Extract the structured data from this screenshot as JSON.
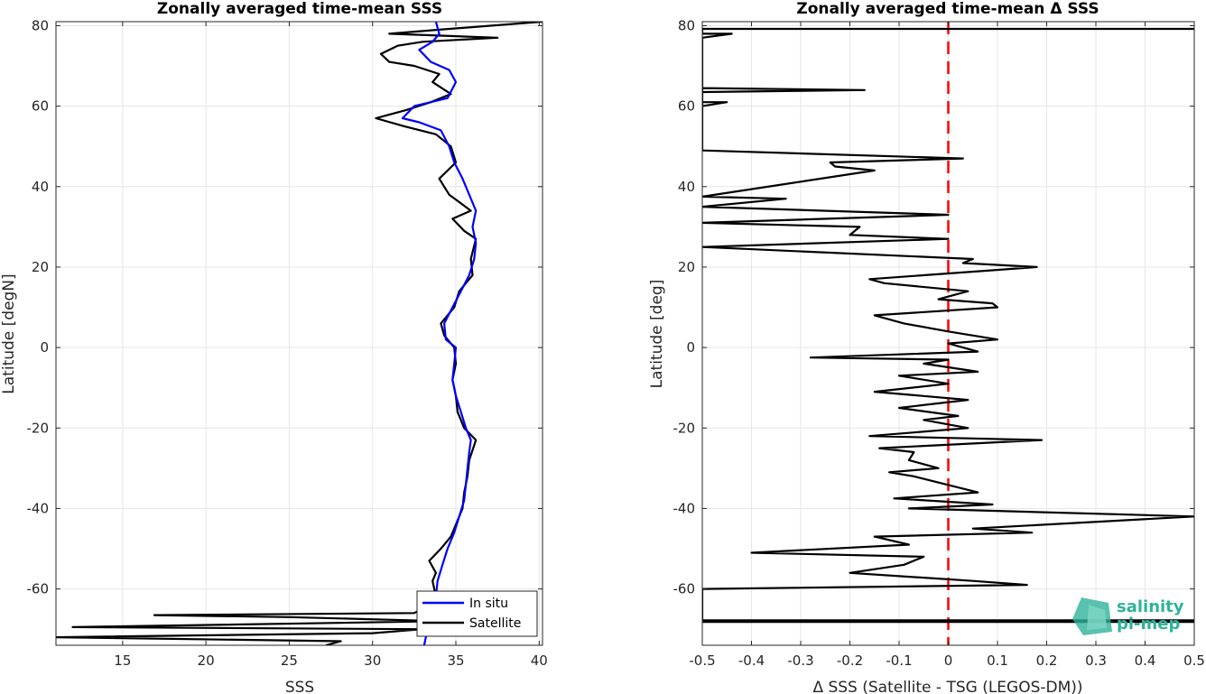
{
  "chart_data": [
    {
      "type": "line",
      "title": "Zonally averaged time-mean SSS",
      "xlabel": "SSS",
      "ylabel": "Latitude [degN]",
      "xlim": [
        11,
        40.2
      ],
      "ylim": [
        -74,
        81
      ],
      "xticks": [
        15,
        20,
        25,
        30,
        35,
        40
      ],
      "yticks": [
        -60,
        -40,
        -20,
        0,
        20,
        40,
        60,
        80
      ],
      "grid": true,
      "legend_placement": "bottom-right",
      "series": [
        {
          "name": "In situ",
          "color": "#0000ff",
          "points": [
            [
              33.1,
              -74
            ],
            [
              33.3,
              -70
            ],
            [
              33.5,
              -66
            ],
            [
              33.8,
              -62
            ],
            [
              33.9,
              -58
            ],
            [
              34.2,
              -54
            ],
            [
              34.5,
              -50
            ],
            [
              34.9,
              -46
            ],
            [
              35.2,
              -42
            ],
            [
              35.5,
              -38
            ],
            [
              35.6,
              -34
            ],
            [
              35.7,
              -30
            ],
            [
              35.8,
              -26
            ],
            [
              35.9,
              -23
            ],
            [
              35.6,
              -20
            ],
            [
              35.3,
              -16
            ],
            [
              35.0,
              -12
            ],
            [
              34.8,
              -8
            ],
            [
              34.9,
              -4
            ],
            [
              35.0,
              0
            ],
            [
              34.4,
              2
            ],
            [
              34.3,
              6
            ],
            [
              34.8,
              10
            ],
            [
              35.3,
              14
            ],
            [
              35.8,
              18
            ],
            [
              36.1,
              22
            ],
            [
              36.2,
              26
            ],
            [
              36.0,
              30
            ],
            [
              36.2,
              34
            ],
            [
              35.8,
              38
            ],
            [
              35.4,
              42
            ],
            [
              34.9,
              46
            ],
            [
              34.6,
              50
            ],
            [
              34.1,
              54
            ],
            [
              32.8,
              56
            ],
            [
              31.8,
              57
            ],
            [
              32.5,
              60
            ],
            [
              34.5,
              62
            ],
            [
              35.0,
              66
            ],
            [
              34.6,
              69
            ],
            [
              33.5,
              71
            ],
            [
              32.8,
              74
            ],
            [
              33.6,
              76
            ],
            [
              34.0,
              78
            ],
            [
              33.8,
              81
            ]
          ]
        },
        {
          "name": "Satellite",
          "color": "#000000",
          "points": [
            [
              27.2,
              -74
            ],
            [
              28.1,
              -73
            ],
            [
              11.0,
              -72
            ],
            [
              30.0,
              -71
            ],
            [
              33.0,
              -70
            ],
            [
              12.0,
              -69.5
            ],
            [
              34.2,
              -68
            ],
            [
              25.0,
              -67
            ],
            [
              16.9,
              -66.5
            ],
            [
              32.5,
              -66
            ],
            [
              33.5,
              -64
            ],
            [
              33.8,
              -62
            ],
            [
              33.6,
              -58
            ],
            [
              33.8,
              -56
            ],
            [
              33.4,
              -53
            ],
            [
              34.1,
              -50
            ],
            [
              34.7,
              -47
            ],
            [
              35.0,
              -44
            ],
            [
              35.4,
              -40
            ],
            [
              35.5,
              -36
            ],
            [
              35.7,
              -32
            ],
            [
              35.8,
              -28
            ],
            [
              36.2,
              -23
            ],
            [
              35.5,
              -20
            ],
            [
              35.1,
              -16
            ],
            [
              35.0,
              -12
            ],
            [
              34.8,
              -8
            ],
            [
              35.0,
              -4
            ],
            [
              34.9,
              0
            ],
            [
              34.3,
              3
            ],
            [
              34.1,
              6
            ],
            [
              34.9,
              10
            ],
            [
              35.2,
              14
            ],
            [
              36.0,
              18
            ],
            [
              35.9,
              22
            ],
            [
              36.2,
              27
            ],
            [
              35.5,
              29
            ],
            [
              34.8,
              32
            ],
            [
              35.9,
              34
            ],
            [
              34.6,
              38
            ],
            [
              34.0,
              42
            ],
            [
              35.0,
              46
            ],
            [
              34.7,
              50
            ],
            [
              33.8,
              53
            ],
            [
              31.9,
              55
            ],
            [
              30.2,
              57
            ],
            [
              32.0,
              59
            ],
            [
              33.5,
              61
            ],
            [
              34.7,
              63
            ],
            [
              33.6,
              66
            ],
            [
              34.0,
              68
            ],
            [
              32.5,
              70
            ],
            [
              31.0,
              71
            ],
            [
              30.5,
              73
            ],
            [
              31.5,
              75
            ],
            [
              33.0,
              76
            ],
            [
              37.5,
              77
            ],
            [
              31.0,
              78
            ],
            [
              34.0,
              79
            ],
            [
              40.2,
              81
            ]
          ]
        }
      ]
    },
    {
      "type": "line",
      "title": "Zonally averaged time-mean Δ SSS",
      "xlabel": "Δ SSS (Satellite - TSG (LEGOS-DM))",
      "ylabel": "Latitude [deg]",
      "xlim": [
        -0.5,
        0.5
      ],
      "ylim": [
        -74,
        81
      ],
      "xticks": [
        -0.5,
        -0.4,
        -0.3,
        -0.2,
        -0.1,
        0,
        0.1,
        0.2,
        0.3,
        0.4,
        0.5
      ],
      "yticks": [
        -60,
        -40,
        -20,
        0,
        20,
        40,
        60,
        80
      ],
      "grid": true,
      "reference_line": {
        "x": 0,
        "color": "#ff0000",
        "style": "dashed"
      },
      "series": [
        {
          "name": "",
          "color": "#000000",
          "points": [
            [
              -0.5,
              -68.2
            ],
            [
              0.5,
              -68.2
            ],
            [
              0.5,
              -67.8
            ],
            [
              -0.5,
              -67.8
            ],
            [
              -0.5,
              -60
            ],
            [
              0.16,
              -59
            ],
            [
              0.05,
              -58
            ],
            [
              -0.2,
              -56
            ],
            [
              -0.09,
              -54
            ],
            [
              -0.05,
              -52
            ],
            [
              -0.4,
              -51
            ],
            [
              -0.08,
              -49
            ],
            [
              -0.15,
              -47
            ],
            [
              0.17,
              -46
            ],
            [
              0.05,
              -45
            ],
            [
              0.5,
              -42
            ],
            [
              -0.08,
              -40
            ],
            [
              0.09,
              -39
            ],
            [
              -0.11,
              -37.5
            ],
            [
              0.06,
              -36
            ],
            [
              -0.07,
              -32
            ],
            [
              -0.12,
              -31
            ],
            [
              -0.02,
              -30
            ],
            [
              -0.08,
              -28
            ],
            [
              -0.07,
              -26
            ],
            [
              -0.14,
              -25
            ],
            [
              0.19,
              -23
            ],
            [
              -0.16,
              -22
            ],
            [
              0.04,
              -20
            ],
            [
              -0.05,
              -18
            ],
            [
              0.02,
              -17
            ],
            [
              -0.1,
              -15
            ],
            [
              0.04,
              -13
            ],
            [
              -0.15,
              -11
            ],
            [
              0.0,
              -9
            ],
            [
              -0.1,
              -7
            ],
            [
              0.06,
              -6
            ],
            [
              -0.05,
              -4
            ],
            [
              0.0,
              -3
            ],
            [
              -0.28,
              -2.5
            ],
            [
              0.06,
              -1
            ],
            [
              0.0,
              1
            ],
            [
              0.1,
              2
            ],
            [
              0.0,
              4
            ],
            [
              -0.09,
              6
            ],
            [
              -0.15,
              8
            ],
            [
              0.1,
              10
            ],
            [
              0.09,
              11
            ],
            [
              -0.02,
              12
            ],
            [
              0.04,
              14
            ],
            [
              -0.13,
              16
            ],
            [
              -0.16,
              17
            ],
            [
              0.18,
              20
            ],
            [
              0.03,
              21
            ],
            [
              0.05,
              22
            ],
            [
              -0.5,
              25
            ],
            [
              0.0,
              27
            ],
            [
              -0.2,
              28
            ],
            [
              -0.18,
              30
            ],
            [
              -0.5,
              31
            ],
            [
              0.0,
              33
            ],
            [
              -0.5,
              35
            ],
            [
              -0.33,
              37
            ],
            [
              -0.5,
              37.5
            ],
            [
              -0.15,
              44
            ],
            [
              -0.23,
              45
            ],
            [
              -0.24,
              46
            ],
            [
              0.03,
              47
            ],
            [
              -0.5,
              49
            ],
            [
              -0.5,
              62
            ],
            [
              -0.5,
              63.5
            ],
            [
              -0.17,
              64
            ],
            [
              -0.5,
              64.5
            ],
            [
              -0.5,
              60
            ],
            [
              -0.45,
              61
            ],
            [
              -0.5,
              61
            ],
            [
              -0.5,
              77
            ],
            [
              -0.44,
              78
            ],
            [
              -0.5,
              78
            ],
            [
              -0.5,
              79.2
            ],
            [
              0.5,
              79.2
            ]
          ]
        }
      ]
    }
  ],
  "logo": {
    "line1": "salinity",
    "line2": "pi-mep"
  }
}
